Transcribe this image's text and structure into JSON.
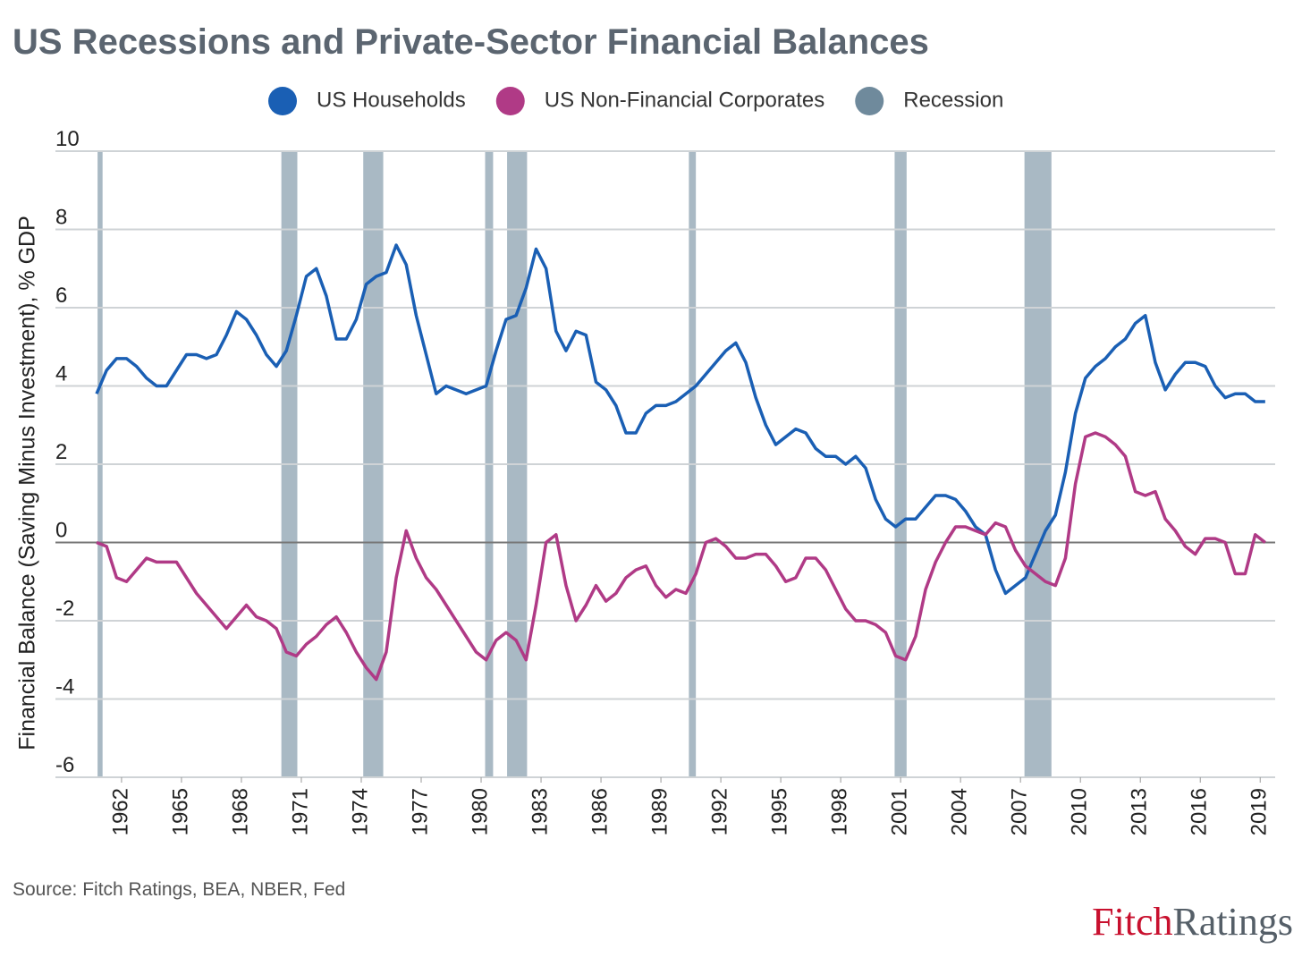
{
  "chart_data": {
    "type": "line",
    "title": "US Recessions and Private-Sector Financial Balances",
    "y_label": "Financial Balance (Saving Minus Investment), % GDP",
    "source": "Source: Fitch Ratings, BEA, NBER, Fed",
    "logo": [
      "Fitch",
      "Ratings"
    ],
    "xlim": [
      1960.75,
      2019.75
    ],
    "ylim": [
      -6,
      10
    ],
    "xticks": [
      1962,
      1965,
      1968,
      1971,
      1974,
      1977,
      1980,
      1983,
      1986,
      1989,
      1992,
      1995,
      1998,
      2001,
      2004,
      2007,
      2010,
      2013,
      2016,
      2019
    ],
    "yticks": [
      -6,
      -4,
      -2,
      0,
      2,
      4,
      6,
      8,
      10
    ],
    "grid": true,
    "recession_name": "Recession",
    "recession_color": "#6f8a9c",
    "recessions": [
      {
        "start": 1960.8,
        "end": 1961.05
      },
      {
        "start": 1970.0,
        "end": 1970.8
      },
      {
        "start": 1974.1,
        "end": 1975.1
      },
      {
        "start": 1980.2,
        "end": 1980.6
      },
      {
        "start": 1981.3,
        "end": 1982.3
      },
      {
        "start": 1990.4,
        "end": 1990.75
      },
      {
        "start": 2000.7,
        "end": 2001.3
      },
      {
        "start": 2007.2,
        "end": 2008.55
      }
    ],
    "x": [
      1960.75,
      1961.25,
      1961.75,
      1962.25,
      1962.75,
      1963.25,
      1963.75,
      1964.25,
      1964.75,
      1965.25,
      1965.75,
      1966.25,
      1966.75,
      1967.25,
      1967.75,
      1968.25,
      1968.75,
      1969.25,
      1969.75,
      1970.25,
      1970.75,
      1971.25,
      1971.75,
      1972.25,
      1972.75,
      1973.25,
      1973.75,
      1974.25,
      1974.75,
      1975.25,
      1975.75,
      1976.25,
      1976.75,
      1977.25,
      1977.75,
      1978.25,
      1978.75,
      1979.25,
      1979.75,
      1980.25,
      1980.75,
      1981.25,
      1981.75,
      1982.25,
      1982.75,
      1983.25,
      1983.75,
      1984.25,
      1984.75,
      1985.25,
      1985.75,
      1986.25,
      1986.75,
      1987.25,
      1987.75,
      1988.25,
      1988.75,
      1989.25,
      1989.75,
      1990.25,
      1990.75,
      1991.25,
      1991.75,
      1992.25,
      1992.75,
      1993.25,
      1993.75,
      1994.25,
      1994.75,
      1995.25,
      1995.75,
      1996.25,
      1996.75,
      1997.25,
      1997.75,
      1998.25,
      1998.75,
      1999.25,
      1999.75,
      2000.25,
      2000.75,
      2001.25,
      2001.75,
      2002.25,
      2002.75,
      2003.25,
      2003.75,
      2004.25,
      2004.75,
      2005.25,
      2005.75,
      2006.25,
      2006.75,
      2007.25,
      2007.75,
      2008.25,
      2008.75,
      2009.25,
      2009.75,
      2010.25,
      2010.75,
      2011.25,
      2011.75,
      2012.25,
      2012.75,
      2013.25,
      2013.75,
      2014.25,
      2014.75,
      2015.25,
      2015.75,
      2016.25,
      2016.75,
      2017.25,
      2017.75,
      2018.25,
      2018.75,
      2019.25
    ],
    "series": [
      {
        "name": "US Households",
        "color": "#1a5fb4",
        "values": [
          3.8,
          4.4,
          4.7,
          4.7,
          4.5,
          4.2,
          4.0,
          4.0,
          4.4,
          4.8,
          4.8,
          4.7,
          4.8,
          5.3,
          5.9,
          5.7,
          5.3,
          4.8,
          4.5,
          4.9,
          5.8,
          6.8,
          7.0,
          6.3,
          5.2,
          5.2,
          5.7,
          6.6,
          6.8,
          6.9,
          7.6,
          7.1,
          5.8,
          4.8,
          3.8,
          4.0,
          3.9,
          3.8,
          3.9,
          4.0,
          4.9,
          5.7,
          5.8,
          6.5,
          7.5,
          7.0,
          5.4,
          4.9,
          5.4,
          5.3,
          4.1,
          3.9,
          3.5,
          2.8,
          2.8,
          3.3,
          3.5,
          3.5,
          3.6,
          3.8,
          4.0,
          4.3,
          4.6,
          4.9,
          5.1,
          4.6,
          3.7,
          3.0,
          2.5,
          2.7,
          2.9,
          2.8,
          2.4,
          2.2,
          2.2,
          2.0,
          2.2,
          1.9,
          1.1,
          0.6,
          0.4,
          0.6,
          0.6,
          0.9,
          1.2,
          1.2,
          1.1,
          0.8,
          0.4,
          0.2,
          -0.7,
          -1.3,
          -1.1,
          -0.9,
          -0.3,
          0.3,
          0.7,
          1.8,
          3.3,
          4.2,
          4.5,
          4.7,
          5.0,
          5.2,
          5.6,
          5.8,
          4.6,
          3.9,
          4.3,
          4.6,
          4.6,
          4.5,
          4.0,
          3.7,
          3.8,
          3.8,
          3.6,
          3.6
        ]
      },
      {
        "name": "US Non-Financial Corporates",
        "color": "#b03a86",
        "values": [
          0.0,
          -0.1,
          -0.9,
          -1.0,
          -0.7,
          -0.4,
          -0.5,
          -0.5,
          -0.5,
          -0.9,
          -1.3,
          -1.6,
          -1.9,
          -2.2,
          -1.9,
          -1.6,
          -1.9,
          -2.0,
          -2.2,
          -2.8,
          -2.9,
          -2.6,
          -2.4,
          -2.1,
          -1.9,
          -2.3,
          -2.8,
          -3.2,
          -3.5,
          -2.8,
          -0.9,
          0.3,
          -0.4,
          -0.9,
          -1.2,
          -1.6,
          -2.0,
          -2.4,
          -2.8,
          -3.0,
          -2.5,
          -2.3,
          -2.5,
          -3.0,
          -1.6,
          0.0,
          0.2,
          -1.1,
          -2.0,
          -1.6,
          -1.1,
          -1.5,
          -1.3,
          -0.9,
          -0.7,
          -0.6,
          -1.1,
          -1.4,
          -1.2,
          -1.3,
          -0.8,
          0.0,
          0.1,
          -0.1,
          -0.4,
          -0.4,
          -0.3,
          -0.3,
          -0.6,
          -1.0,
          -0.9,
          -0.4,
          -0.4,
          -0.7,
          -1.2,
          -1.7,
          -2.0,
          -2.0,
          -2.1,
          -2.3,
          -2.9,
          -3.0,
          -2.4,
          -1.2,
          -0.5,
          0.0,
          0.4,
          0.4,
          0.3,
          0.2,
          0.5,
          0.4,
          -0.2,
          -0.6,
          -0.8,
          -1.0,
          -1.1,
          -0.4,
          1.5,
          2.7,
          2.8,
          2.7,
          2.5,
          2.2,
          1.3,
          1.2,
          1.3,
          0.6,
          0.3,
          -0.1,
          -0.3,
          0.1,
          0.1,
          0.0,
          -0.8,
          -0.8,
          0.2,
          0.0
        ]
      }
    ]
  }
}
